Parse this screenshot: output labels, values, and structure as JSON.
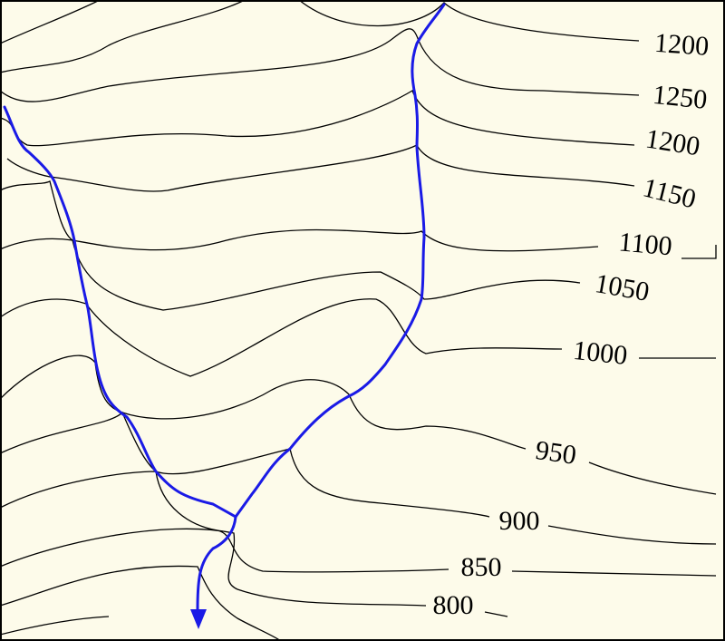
{
  "map": {
    "contour_labels": [
      "1200",
      "1250",
      "1200",
      "1150",
      "1100",
      "1050",
      "1000",
      "950",
      "900",
      "850",
      "800"
    ]
  }
}
